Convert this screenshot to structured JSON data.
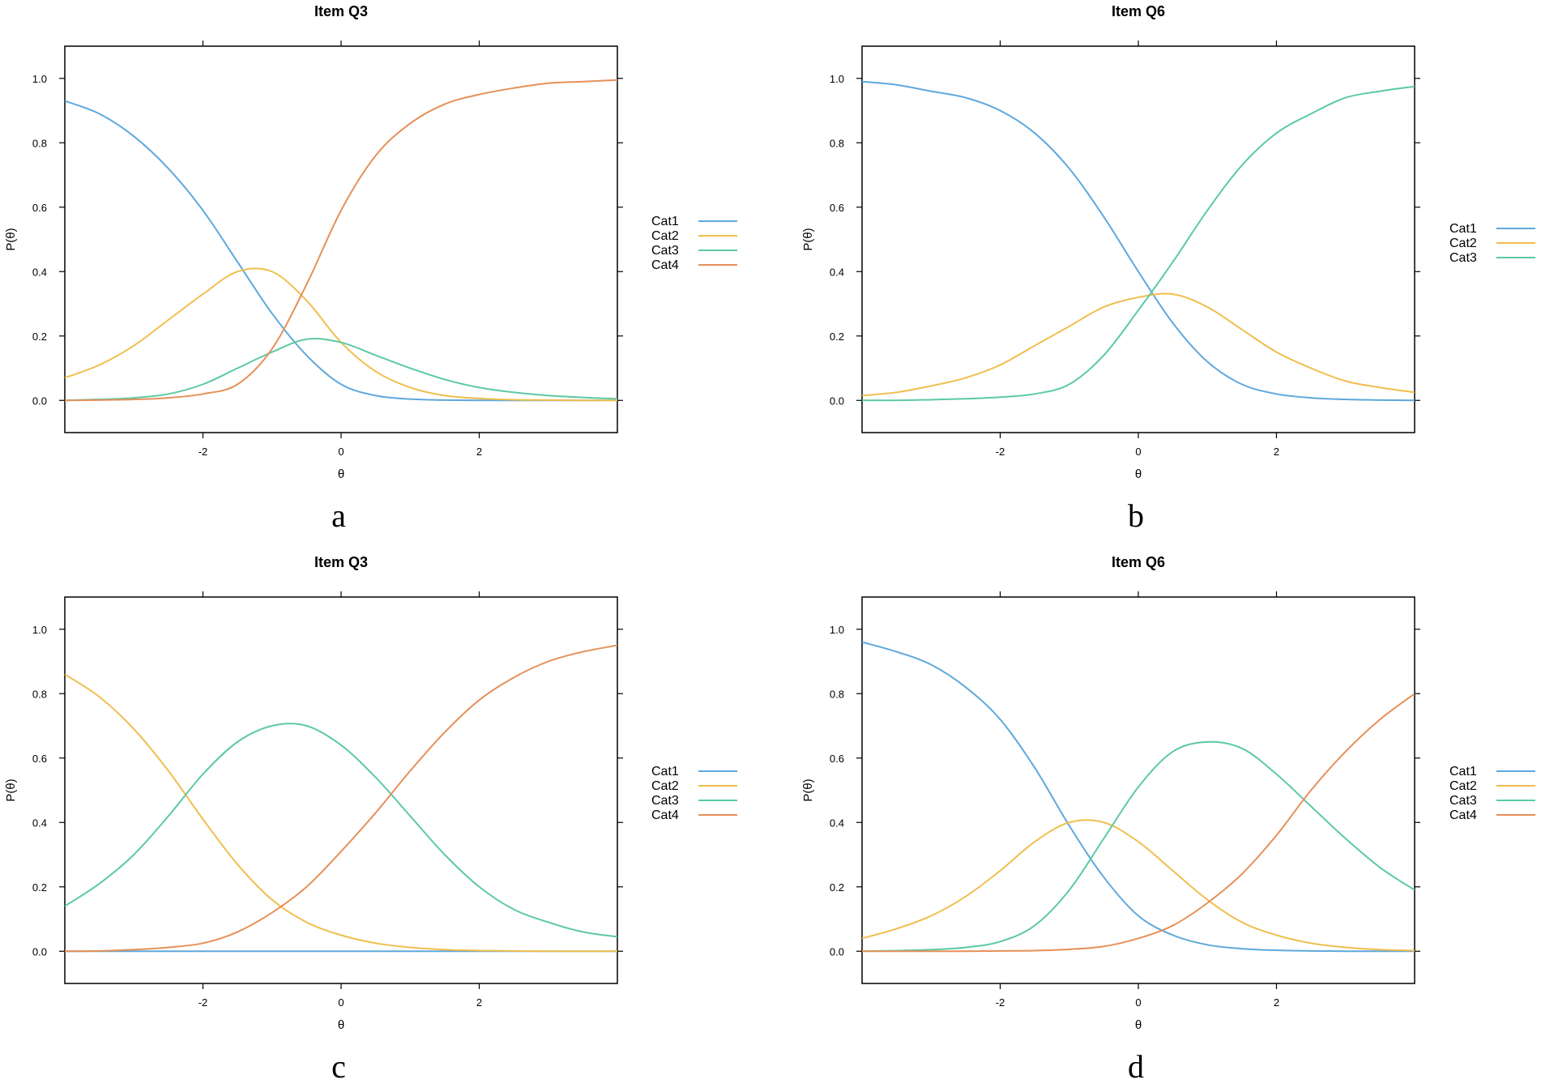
{
  "colors": {
    "Cat1": "#5FA8DC",
    "Cat2": "#F0BE4E",
    "Cat3": "#5CC9A4",
    "Cat4": "#E59059"
  },
  "chart_data": [
    {
      "type": "line",
      "title": "Item Q3",
      "panel_label": "a",
      "xlabel": "θ",
      "ylabel": "P(θ)",
      "xlim": [
        -4,
        4
      ],
      "ylim": [
        -0.1,
        1.1
      ],
      "x_ticks": [
        -2,
        0,
        2
      ],
      "y_ticks": [
        0.0,
        0.2,
        0.4,
        0.6,
        0.8,
        1.0
      ],
      "x_tick_labels": [
        "-2",
        "0",
        "2"
      ],
      "y_tick_labels": [
        "0.0",
        "0.2",
        "0.4",
        "0.6",
        "0.8",
        "1.0"
      ],
      "legend_position": "right",
      "x": [
        -4,
        -3.5,
        -3,
        -2.5,
        -2,
        -1.5,
        -1,
        -0.5,
        0,
        0.5,
        1,
        1.5,
        2,
        2.5,
        3,
        3.5,
        4
      ],
      "series": [
        {
          "name": "Cat1",
          "values": [
            0.93,
            0.89,
            0.82,
            0.72,
            0.59,
            0.43,
            0.27,
            0.14,
            0.05,
            0.015,
            0.004,
            0.001,
            0.0,
            0.0,
            0.0,
            0.0,
            0.0
          ]
        },
        {
          "name": "Cat2",
          "values": [
            0.07,
            0.11,
            0.17,
            0.25,
            0.33,
            0.4,
            0.4,
            0.31,
            0.18,
            0.09,
            0.04,
            0.015,
            0.006,
            0.002,
            0.001,
            0.0,
            0.0
          ]
        },
        {
          "name": "Cat3",
          "values": [
            0.0,
            0.003,
            0.008,
            0.02,
            0.05,
            0.1,
            0.15,
            0.19,
            0.18,
            0.14,
            0.1,
            0.065,
            0.04,
            0.025,
            0.015,
            0.009,
            0.005
          ]
        },
        {
          "name": "Cat4",
          "values": [
            0.0,
            0.001,
            0.003,
            0.008,
            0.02,
            0.05,
            0.16,
            0.36,
            0.59,
            0.76,
            0.86,
            0.92,
            0.95,
            0.97,
            0.985,
            0.99,
            0.995
          ]
        }
      ]
    },
    {
      "type": "line",
      "title": "Item Q6",
      "panel_label": "b",
      "xlabel": "θ",
      "ylabel": "P(θ)",
      "xlim": [
        -4,
        4
      ],
      "ylim": [
        -0.1,
        1.1
      ],
      "x_ticks": [
        -2,
        0,
        2
      ],
      "y_ticks": [
        0.0,
        0.2,
        0.4,
        0.6,
        0.8,
        1.0
      ],
      "x_tick_labels": [
        "-2",
        "0",
        "2"
      ],
      "y_tick_labels": [
        "0.0",
        "0.2",
        "0.4",
        "0.6",
        "0.8",
        "1.0"
      ],
      "legend_position": "right",
      "x": [
        -4,
        -3.5,
        -3,
        -2.5,
        -2,
        -1.5,
        -1,
        -0.5,
        0,
        0.5,
        1,
        1.5,
        2,
        2.5,
        3,
        3.5,
        4
      ],
      "series": [
        {
          "name": "Cat1",
          "values": [
            0.99,
            0.98,
            0.96,
            0.94,
            0.9,
            0.83,
            0.72,
            0.57,
            0.4,
            0.24,
            0.12,
            0.05,
            0.02,
            0.008,
            0.003,
            0.001,
            0.0
          ]
        },
        {
          "name": "Cat2",
          "values": [
            0.015,
            0.025,
            0.045,
            0.07,
            0.11,
            0.17,
            0.23,
            0.29,
            0.32,
            0.33,
            0.29,
            0.22,
            0.15,
            0.1,
            0.06,
            0.04,
            0.025
          ]
        },
        {
          "name": "Cat3",
          "values": [
            0.0,
            0.0,
            0.002,
            0.005,
            0.01,
            0.02,
            0.05,
            0.14,
            0.28,
            0.43,
            0.59,
            0.73,
            0.83,
            0.89,
            0.94,
            0.96,
            0.975
          ]
        }
      ]
    },
    {
      "type": "line",
      "title": "Item Q3",
      "panel_label": "c",
      "xlabel": "θ",
      "ylabel": "P(θ)",
      "xlim": [
        -4,
        4
      ],
      "ylim": [
        -0.1,
        1.1
      ],
      "x_ticks": [
        -2,
        0,
        2
      ],
      "y_ticks": [
        0.0,
        0.2,
        0.4,
        0.6,
        0.8,
        1.0
      ],
      "x_tick_labels": [
        "-2",
        "0",
        "2"
      ],
      "y_tick_labels": [
        "0.0",
        "0.2",
        "0.4",
        "0.6",
        "0.8",
        "1.0"
      ],
      "legend_position": "right",
      "x": [
        -4,
        -3.5,
        -3,
        -2.5,
        -2,
        -1.5,
        -1,
        -0.5,
        0,
        0.5,
        1,
        1.5,
        2,
        2.5,
        3,
        3.5,
        4
      ],
      "series": [
        {
          "name": "Cat1",
          "values": [
            0.0,
            0.0,
            0.0,
            0.0,
            0.0,
            0.0,
            0.0,
            0.0,
            0.0,
            0.0,
            0.0,
            0.0,
            0.0,
            0.0,
            0.0,
            0.0,
            0.0
          ]
        },
        {
          "name": "Cat2",
          "values": [
            0.86,
            0.79,
            0.69,
            0.56,
            0.41,
            0.27,
            0.16,
            0.09,
            0.05,
            0.025,
            0.012,
            0.005,
            0.002,
            0.001,
            0.0,
            0.0,
            0.0
          ]
        },
        {
          "name": "Cat3",
          "values": [
            0.14,
            0.21,
            0.3,
            0.42,
            0.55,
            0.65,
            0.7,
            0.7,
            0.64,
            0.54,
            0.42,
            0.3,
            0.2,
            0.13,
            0.09,
            0.06,
            0.045
          ]
        },
        {
          "name": "Cat4",
          "values": [
            0.0,
            0.001,
            0.005,
            0.012,
            0.025,
            0.06,
            0.12,
            0.2,
            0.31,
            0.43,
            0.56,
            0.68,
            0.78,
            0.85,
            0.9,
            0.93,
            0.95
          ]
        }
      ]
    },
    {
      "type": "line",
      "title": "Item Q6",
      "panel_label": "d",
      "xlabel": "θ",
      "ylabel": "P(θ)",
      "xlim": [
        -4,
        4
      ],
      "ylim": [
        -0.1,
        1.1
      ],
      "x_ticks": [
        -2,
        0,
        2
      ],
      "y_ticks": [
        0.0,
        0.2,
        0.4,
        0.6,
        0.8,
        1.0
      ],
      "x_tick_labels": [
        "-2",
        "0",
        "2"
      ],
      "y_tick_labels": [
        "0.0",
        "0.2",
        "0.4",
        "0.6",
        "0.8",
        "1.0"
      ],
      "legend_position": "right",
      "x": [
        -4,
        -3.5,
        -3,
        -2.5,
        -2,
        -1.5,
        -1,
        -0.5,
        0,
        0.5,
        1,
        1.5,
        2,
        2.5,
        3,
        3.5,
        4
      ],
      "series": [
        {
          "name": "Cat1",
          "values": [
            0.96,
            0.93,
            0.89,
            0.82,
            0.72,
            0.57,
            0.39,
            0.23,
            0.11,
            0.05,
            0.02,
            0.008,
            0.003,
            0.001,
            0.0,
            0.0,
            0.0
          ]
        },
        {
          "name": "Cat2",
          "values": [
            0.04,
            0.07,
            0.11,
            0.17,
            0.25,
            0.34,
            0.4,
            0.4,
            0.34,
            0.25,
            0.16,
            0.09,
            0.05,
            0.025,
            0.012,
            0.005,
            0.002
          ]
        },
        {
          "name": "Cat3",
          "values": [
            0.0,
            0.002,
            0.005,
            0.012,
            0.03,
            0.08,
            0.19,
            0.35,
            0.51,
            0.62,
            0.65,
            0.63,
            0.55,
            0.45,
            0.35,
            0.26,
            0.19
          ]
        },
        {
          "name": "Cat4",
          "values": [
            0.0,
            0.0,
            0.0,
            0.0,
            0.001,
            0.002,
            0.006,
            0.015,
            0.04,
            0.08,
            0.15,
            0.24,
            0.36,
            0.5,
            0.62,
            0.72,
            0.8
          ]
        }
      ]
    }
  ]
}
